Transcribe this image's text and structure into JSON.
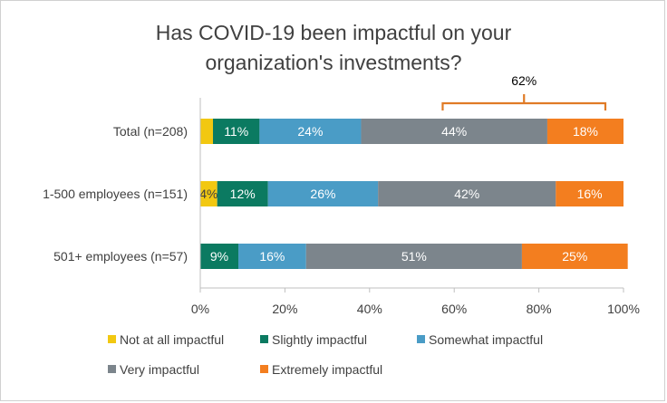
{
  "chart_data": {
    "type": "bar",
    "orientation": "horizontal",
    "stacked": true,
    "title": "Has COVID-19 been impactful on your organization's investments?",
    "title_lines": [
      "Has COVID-19 been impactful on your",
      "organization's investments?"
    ],
    "categories": [
      "Total (n=208)",
      "1-500 employees (n=151)",
      "501+ employees (n=57)"
    ],
    "series": [
      {
        "name": "Not at all impactful",
        "color": "#f2c811",
        "values": [
          3,
          4,
          0
        ],
        "labels": [
          "",
          "4%",
          ""
        ]
      },
      {
        "name": "Slightly impactful",
        "color": "#0b7a61",
        "values": [
          11,
          12,
          9
        ],
        "labels": [
          "11%",
          "12%",
          "9%"
        ]
      },
      {
        "name": "Somewhat impactful",
        "color": "#4a9cc6",
        "values": [
          24,
          26,
          16
        ],
        "labels": [
          "24%",
          "26%",
          "16%"
        ]
      },
      {
        "name": "Very impactful",
        "color": "#7c858c",
        "values": [
          44,
          42,
          51
        ],
        "labels": [
          "44%",
          "42%",
          "51%"
        ]
      },
      {
        "name": "Extremely impactful",
        "color": "#f37e1f",
        "values": [
          18,
          16,
          25
        ],
        "labels": [
          "18%",
          "16%",
          "25%"
        ]
      }
    ],
    "xlim": [
      0,
      100
    ],
    "xticks": [
      0,
      20,
      40,
      60,
      80,
      100
    ],
    "xtick_labels": [
      "0%",
      "20%",
      "40%",
      "60%",
      "80%",
      "100%"
    ],
    "grid": false,
    "legend_position": "bottom",
    "annotation": {
      "text": "62%",
      "spans_series": [
        "Very impactful",
        "Extremely impactful"
      ],
      "row": "Total (n=208)",
      "color": "#e07b26"
    }
  }
}
